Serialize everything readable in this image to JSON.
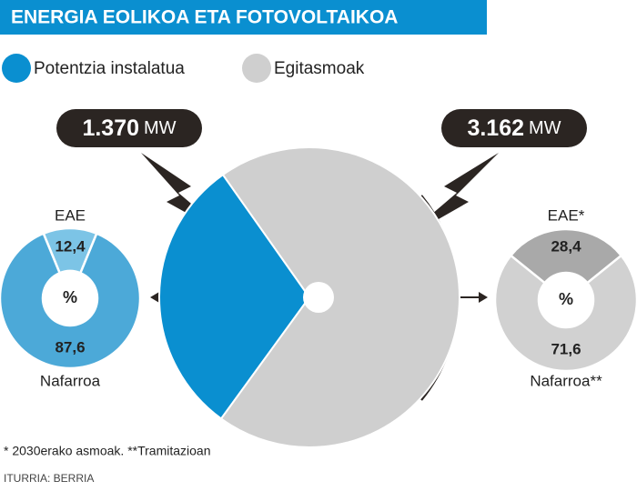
{
  "title": "ENERGIA EOLIKOA ETA FOTOVOLTAIKOA",
  "chart_data": [
    {
      "type": "pie",
      "categories": [
        "Potentzia instalatua",
        "Egitasmoak"
      ],
      "values": [
        1370,
        3162
      ],
      "value_labels": [
        "1.370",
        "3.162"
      ],
      "unit": "MW",
      "colors": [
        "#0a8fd0",
        "#cfcfcf"
      ]
    },
    {
      "type": "donut",
      "center_label": "%",
      "categories": [
        "EAE",
        "Nafarroa"
      ],
      "values": [
        12.4,
        87.6
      ],
      "value_labels": [
        "12,4",
        "87,6"
      ],
      "colors": [
        "#7cc4e6",
        "#4ca9d8"
      ]
    },
    {
      "type": "donut",
      "center_label": "%",
      "categories": [
        "EAE*",
        "Nafarroa**"
      ],
      "values": [
        28.4,
        71.6
      ],
      "value_labels": [
        "28,4",
        "71,6"
      ],
      "colors": [
        "#a9a9a9",
        "#d1d1d1"
      ]
    }
  ],
  "footnote": "* 2030erako asmoak. **Tramitazioan",
  "source": "ITURRIA: BERRIA"
}
